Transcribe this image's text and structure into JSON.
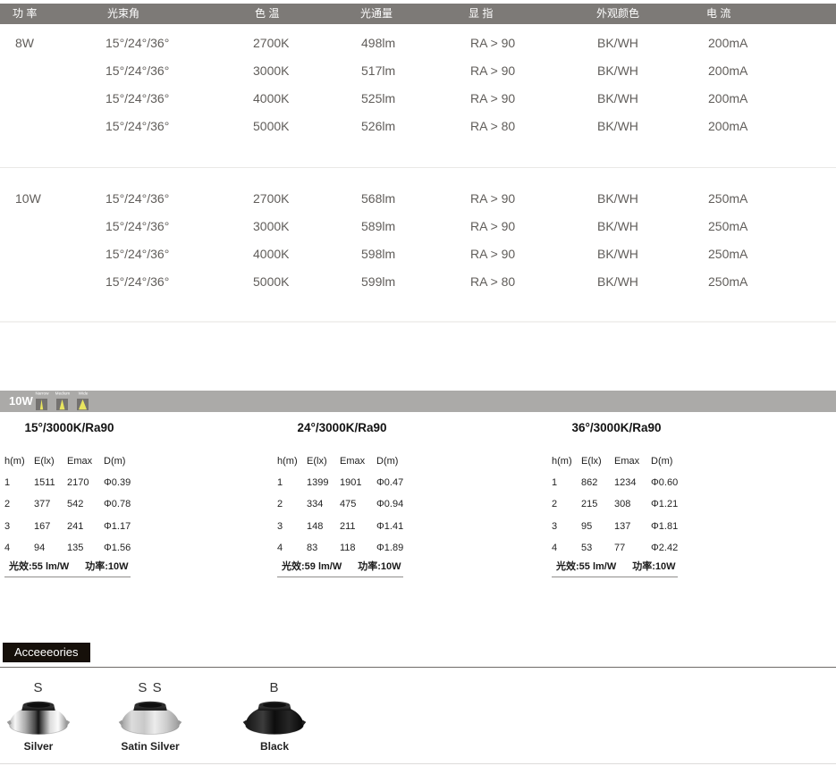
{
  "colors": {
    "header_bar": "#7d7a77",
    "photometric_bar": "#abaaa8",
    "beam_icon_bg": "#747270",
    "beam_icon_yellow": "#e9e55f",
    "accessories_box_bg": "#16100a",
    "spec_text": "#605d5a",
    "table_text": "#232323"
  },
  "spec_table": {
    "headers": [
      "功 率",
      "光束角",
      "色 温",
      "光通量",
      "显 指",
      "外观颜色",
      "电 流"
    ],
    "groups": [
      {
        "power": "8W",
        "rows": [
          {
            "beam": "15°/24°/36°",
            "cct": "2700K",
            "flux": "498lm",
            "cri": "RA > 90",
            "finish": "BK/WH",
            "current": "200mA"
          },
          {
            "beam": "15°/24°/36°",
            "cct": "3000K",
            "flux": "517lm",
            "cri": "RA > 90",
            "finish": "BK/WH",
            "current": "200mA"
          },
          {
            "beam": "15°/24°/36°",
            "cct": "4000K",
            "flux": "525lm",
            "cri": "RA > 90",
            "finish": "BK/WH",
            "current": "200mA"
          },
          {
            "beam": "15°/24°/36°",
            "cct": "5000K",
            "flux": "526lm",
            "cri": "RA > 80",
            "finish": "BK/WH",
            "current": "200mA"
          }
        ]
      },
      {
        "power": "10W",
        "rows": [
          {
            "beam": "15°/24°/36°",
            "cct": "2700K",
            "flux": "568lm",
            "cri": "RA > 90",
            "finish": "BK/WH",
            "current": "250mA"
          },
          {
            "beam": "15°/24°/36°",
            "cct": "3000K",
            "flux": "589lm",
            "cri": "RA > 90",
            "finish": "BK/WH",
            "current": "250mA"
          },
          {
            "beam": "15°/24°/36°",
            "cct": "4000K",
            "flux": "598lm",
            "cri": "RA > 90",
            "finish": "BK/WH",
            "current": "250mA"
          },
          {
            "beam": "15°/24°/36°",
            "cct": "5000K",
            "flux": "599lm",
            "cri": "RA > 80",
            "finish": "BK/WH",
            "current": "250mA"
          }
        ]
      }
    ]
  },
  "photometric": {
    "bar_label": "10W",
    "beam_icons": [
      {
        "label": "Narrow",
        "beam": "narrow"
      },
      {
        "label": "Medium",
        "beam": "medium"
      },
      {
        "label": "Wide",
        "beam": "wide"
      }
    ],
    "tables": [
      {
        "title": "15°/3000K/Ra90",
        "headers": [
          "h(m)",
          "E(lx)",
          "Emax",
          "D(m)"
        ],
        "rows": [
          [
            "1",
            "1511",
            "2170",
            "Φ0.39"
          ],
          [
            "2",
            "377",
            "542",
            "Φ0.78"
          ],
          [
            "3",
            "167",
            "241",
            "Φ1.17"
          ],
          [
            "4",
            "94",
            "135",
            "Φ1.56"
          ]
        ],
        "efficacy": "光效:55 lm/W",
        "power": "功率:10W"
      },
      {
        "title": "24°/3000K/Ra90",
        "headers": [
          "h(m)",
          "E(lx)",
          "Emax",
          "D(m)"
        ],
        "rows": [
          [
            "1",
            "1399",
            "1901",
            "Φ0.47"
          ],
          [
            "2",
            "334",
            "475",
            "Φ0.94"
          ],
          [
            "3",
            "148",
            "211",
            "Φ1.41"
          ],
          [
            "4",
            "83",
            "118",
            "Φ1.89"
          ]
        ],
        "efficacy": "光效:59 lm/W",
        "power": "功率:10W"
      },
      {
        "title": "36°/3000K/Ra90",
        "headers": [
          "h(m)",
          "E(lx)",
          "Emax",
          "D(m)"
        ],
        "rows": [
          [
            "1",
            "862",
            "1234",
            "Φ0.60"
          ],
          [
            "2",
            "215",
            "308",
            "Φ1.21"
          ],
          [
            "3",
            "95",
            "137",
            "Φ1.81"
          ],
          [
            "4",
            "53",
            "77",
            "Φ2.42"
          ]
        ],
        "efficacy": "光效:55 lm/W",
        "power": "功率:10W"
      }
    ]
  },
  "accessories": {
    "title": "Acceeeories",
    "items": [
      {
        "code": "S",
        "label": "Silver",
        "finish": "silver"
      },
      {
        "code": "S S",
        "label": "Satin Silver",
        "finish": "satin"
      },
      {
        "code": "B",
        "label": "Black",
        "finish": "black"
      }
    ]
  }
}
